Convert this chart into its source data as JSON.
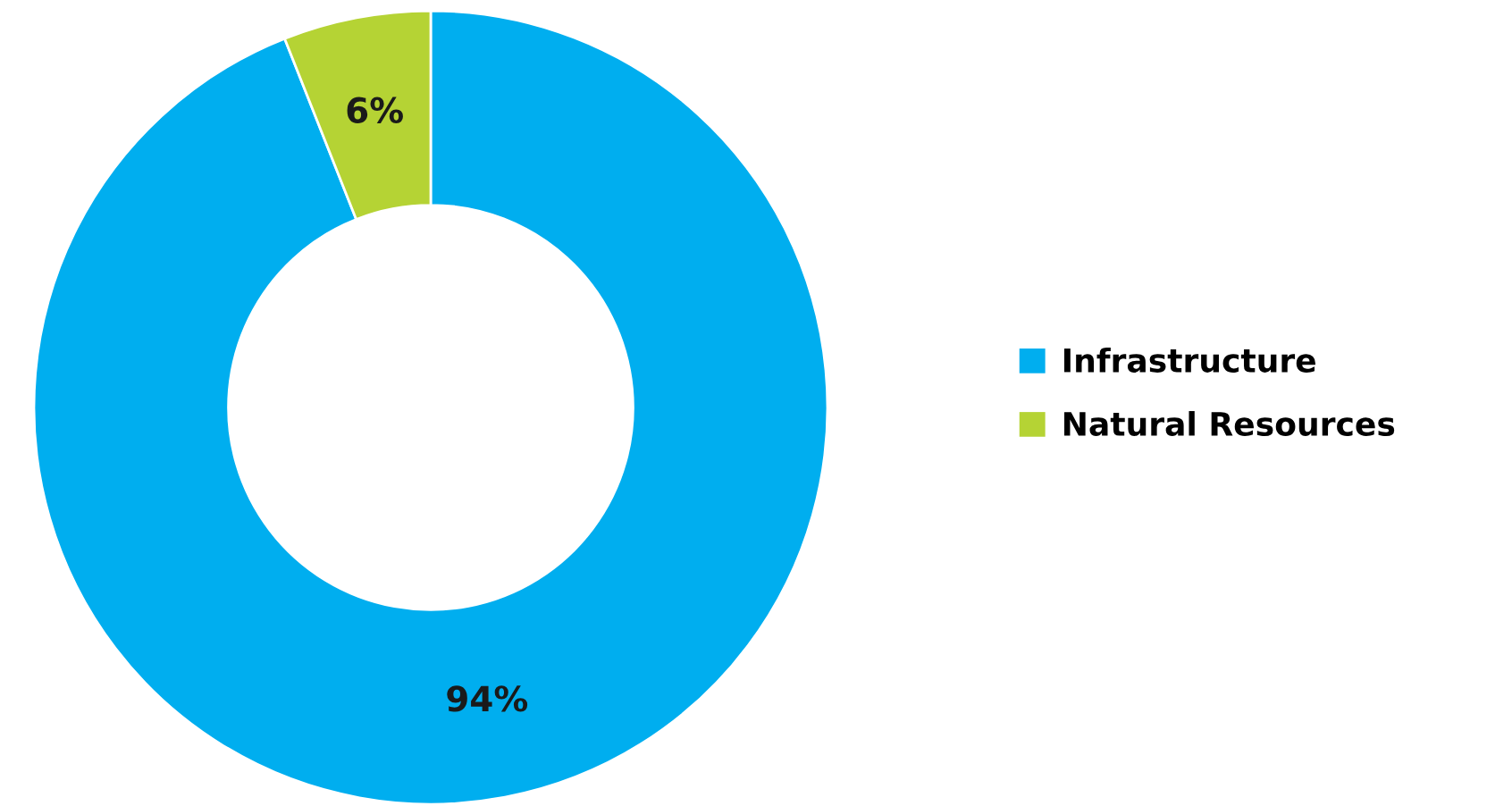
{
  "chart_data": {
    "type": "donut",
    "categories": [
      "Infrastructure",
      "Natural Resources"
    ],
    "values": [
      94,
      6
    ],
    "value_labels": [
      "94%",
      "6%"
    ],
    "colors": [
      "#00aeef",
      "#b5d334"
    ],
    "legend": "right"
  }
}
